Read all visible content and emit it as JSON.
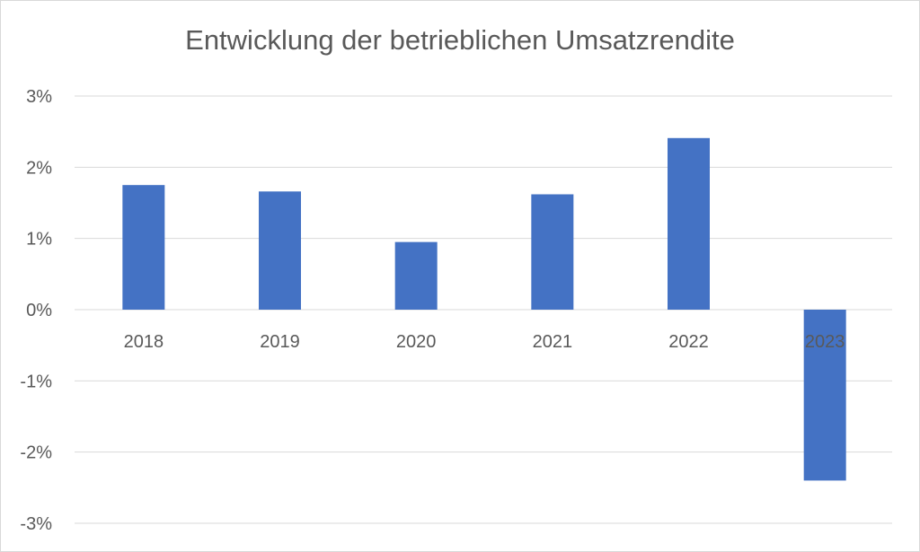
{
  "chart_data": {
    "type": "bar",
    "title": "Entwicklung der betrieblichen Umsatzrendite",
    "xlabel": "",
    "ylabel": "",
    "categories": [
      "2018",
      "2019",
      "2020",
      "2021",
      "2022",
      "2023"
    ],
    "series": [
      {
        "values": [
          1.75,
          1.66,
          0.95,
          1.62,
          2.41,
          -2.4
        ]
      }
    ],
    "ylim": [
      -3,
      3
    ],
    "yticks": [
      3,
      2,
      1,
      0,
      -1,
      -2,
      -3
    ],
    "ytick_labels": [
      "3%",
      "2%",
      "1%",
      "0%",
      "-1%",
      "-2%",
      "-3%"
    ],
    "grid": true,
    "legend": "none",
    "colors": {
      "bar": "#4472c4",
      "grid": "#d9d9d9",
      "text": "#595959"
    }
  }
}
